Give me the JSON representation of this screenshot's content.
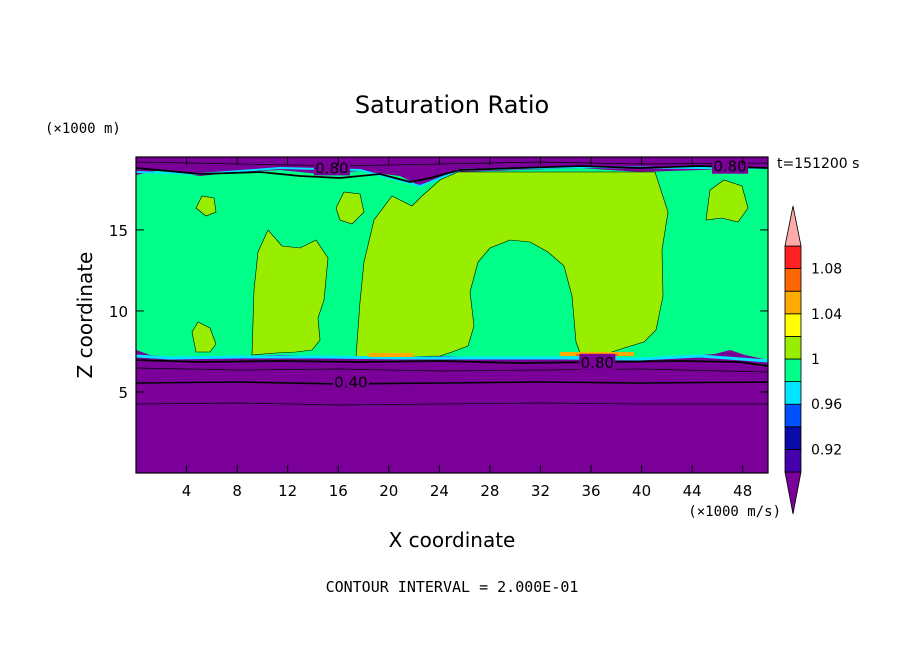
{
  "chart_data": {
    "type": "heatmap",
    "title": "Saturation Ratio",
    "xlabel": "X coordinate",
    "ylabel": "Z coordinate",
    "x_unit": "(×1000 m/s)",
    "y_unit": "(×1000 m)",
    "time_label": "t=151200 s",
    "footer": "CONTOUR INTERVAL = 2.000E-01",
    "xlim": [
      0,
      50
    ],
    "ylim": [
      0,
      19.5
    ],
    "x_ticks": [
      4,
      8,
      12,
      16,
      20,
      24,
      28,
      32,
      36,
      40,
      44,
      48
    ],
    "y_ticks": [
      5,
      10,
      15
    ],
    "contour_labels": [
      {
        "text": "0.80",
        "x": 15.5,
        "y": 18.8
      },
      {
        "text": "0.80",
        "x": 47.0,
        "y": 18.9
      },
      {
        "text": "0.80",
        "x": 36.5,
        "y": 6.8
      },
      {
        "text": "0.40",
        "x": 17.0,
        "y": 5.6
      }
    ],
    "colorbar": {
      "colors": [
        "#7a0099",
        "#4400aa",
        "#0a0aa6",
        "#0050ff",
        "#00e5ff",
        "#00ff88",
        "#99ee00",
        "#ffff00",
        "#ffaa00",
        "#ff6600",
        "#ff2020",
        "#ffaaaa"
      ],
      "labels": [
        {
          "value": "0.92",
          "level": 0.92
        },
        {
          "value": "0.96",
          "level": 0.96
        },
        {
          "value": "1",
          "level": 1.0
        },
        {
          "value": "1.04",
          "level": 1.04
        },
        {
          "value": "1.08",
          "level": 1.08
        }
      ]
    }
  }
}
